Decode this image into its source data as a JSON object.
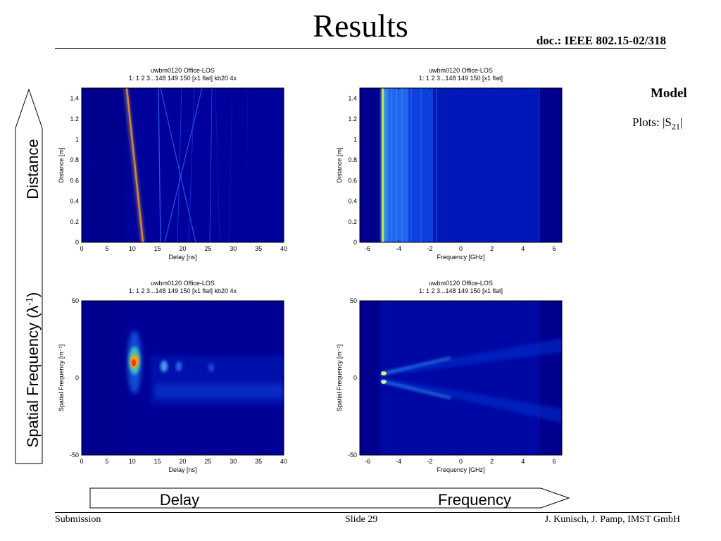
{
  "slide": {
    "title": "Results",
    "doc_ref": "doc.: IEEE 802.15-02/318",
    "side_heading": "Model",
    "side_note_prefix": "Plots: |S",
    "side_note_sub": "21",
    "side_note_suffix": "|",
    "footer_left": "Submission",
    "footer_center": "Slide 29",
    "footer_right": "J. Kunisch, J. Pamp, IMST GmbH"
  },
  "arrows": {
    "vertical_top_label": "Distance",
    "vertical_bottom_label": "Spatial Frequency  (λ",
    "vertical_bottom_sup": "-1",
    "vertical_bottom_close": ")",
    "horizontal_left_label": "Delay",
    "horizontal_right_label": "Frequency"
  },
  "colors": {
    "background": "#00008f",
    "colormap": "jet"
  },
  "chart_data": [
    {
      "type": "heatmap",
      "title": "uwbm0120 Office-LOS",
      "subtitle": "1: 1 2 3...148 149 150 [x1 flat] kb20 4x",
      "xlabel": "Delay [ns]",
      "ylabel": "Distance [m]",
      "xlim": [
        0,
        40
      ],
      "ylim": [
        0,
        1.5
      ],
      "xticks": [
        "0",
        "5",
        "10",
        "15",
        "20",
        "25",
        "30",
        "35",
        "40"
      ],
      "yticks": [
        "0",
        "0.2",
        "0.4",
        "0.6",
        "0.8",
        "1",
        "1.2",
        "1.4"
      ]
    },
    {
      "type": "heatmap",
      "title": "uwbm0120 Office-LOS",
      "subtitle": "1: 1 2 3...148 149 150 [x1 flat]",
      "xlabel": "Frequency [GHz]",
      "ylabel": "Distance [m]",
      "xlim": [
        -6.5,
        6.5
      ],
      "ylim": [
        0,
        1.5
      ],
      "xticks": [
        "-6",
        "-4",
        "-2",
        "0",
        "2",
        "4",
        "6"
      ],
      "yticks": [
        "0",
        "0.2",
        "0.4",
        "0.6",
        "0.8",
        "1",
        "1.2",
        "1.4"
      ]
    },
    {
      "type": "heatmap",
      "title": "uwbm0120 Office-LOS",
      "subtitle": "1: 1 2 3...148 149 150 [x1 flat] kb20 4x",
      "xlabel": "Delay [ns]",
      "ylabel": "Spatial Frequency [m⁻¹]",
      "xlim": [
        0,
        40
      ],
      "ylim": [
        -50,
        50
      ],
      "xticks": [
        "0",
        "5",
        "10",
        "15",
        "20",
        "25",
        "30",
        "35",
        "40"
      ],
      "yticks": [
        "-50",
        "0",
        "50"
      ]
    },
    {
      "type": "heatmap",
      "title": "uwbm0120 Office-LOS",
      "subtitle": "1: 1 2 3...148 149 150 [x1 flat]",
      "xlabel": "Frequency [GHz]",
      "ylabel": "Spatial Frequency [m⁻¹]",
      "xlim": [
        -6.5,
        6.5
      ],
      "ylim": [
        -50,
        50
      ],
      "xticks": [
        "-6",
        "-4",
        "-2",
        "0",
        "2",
        "4",
        "6"
      ],
      "yticks": [
        "-50",
        "0",
        "50"
      ]
    }
  ]
}
